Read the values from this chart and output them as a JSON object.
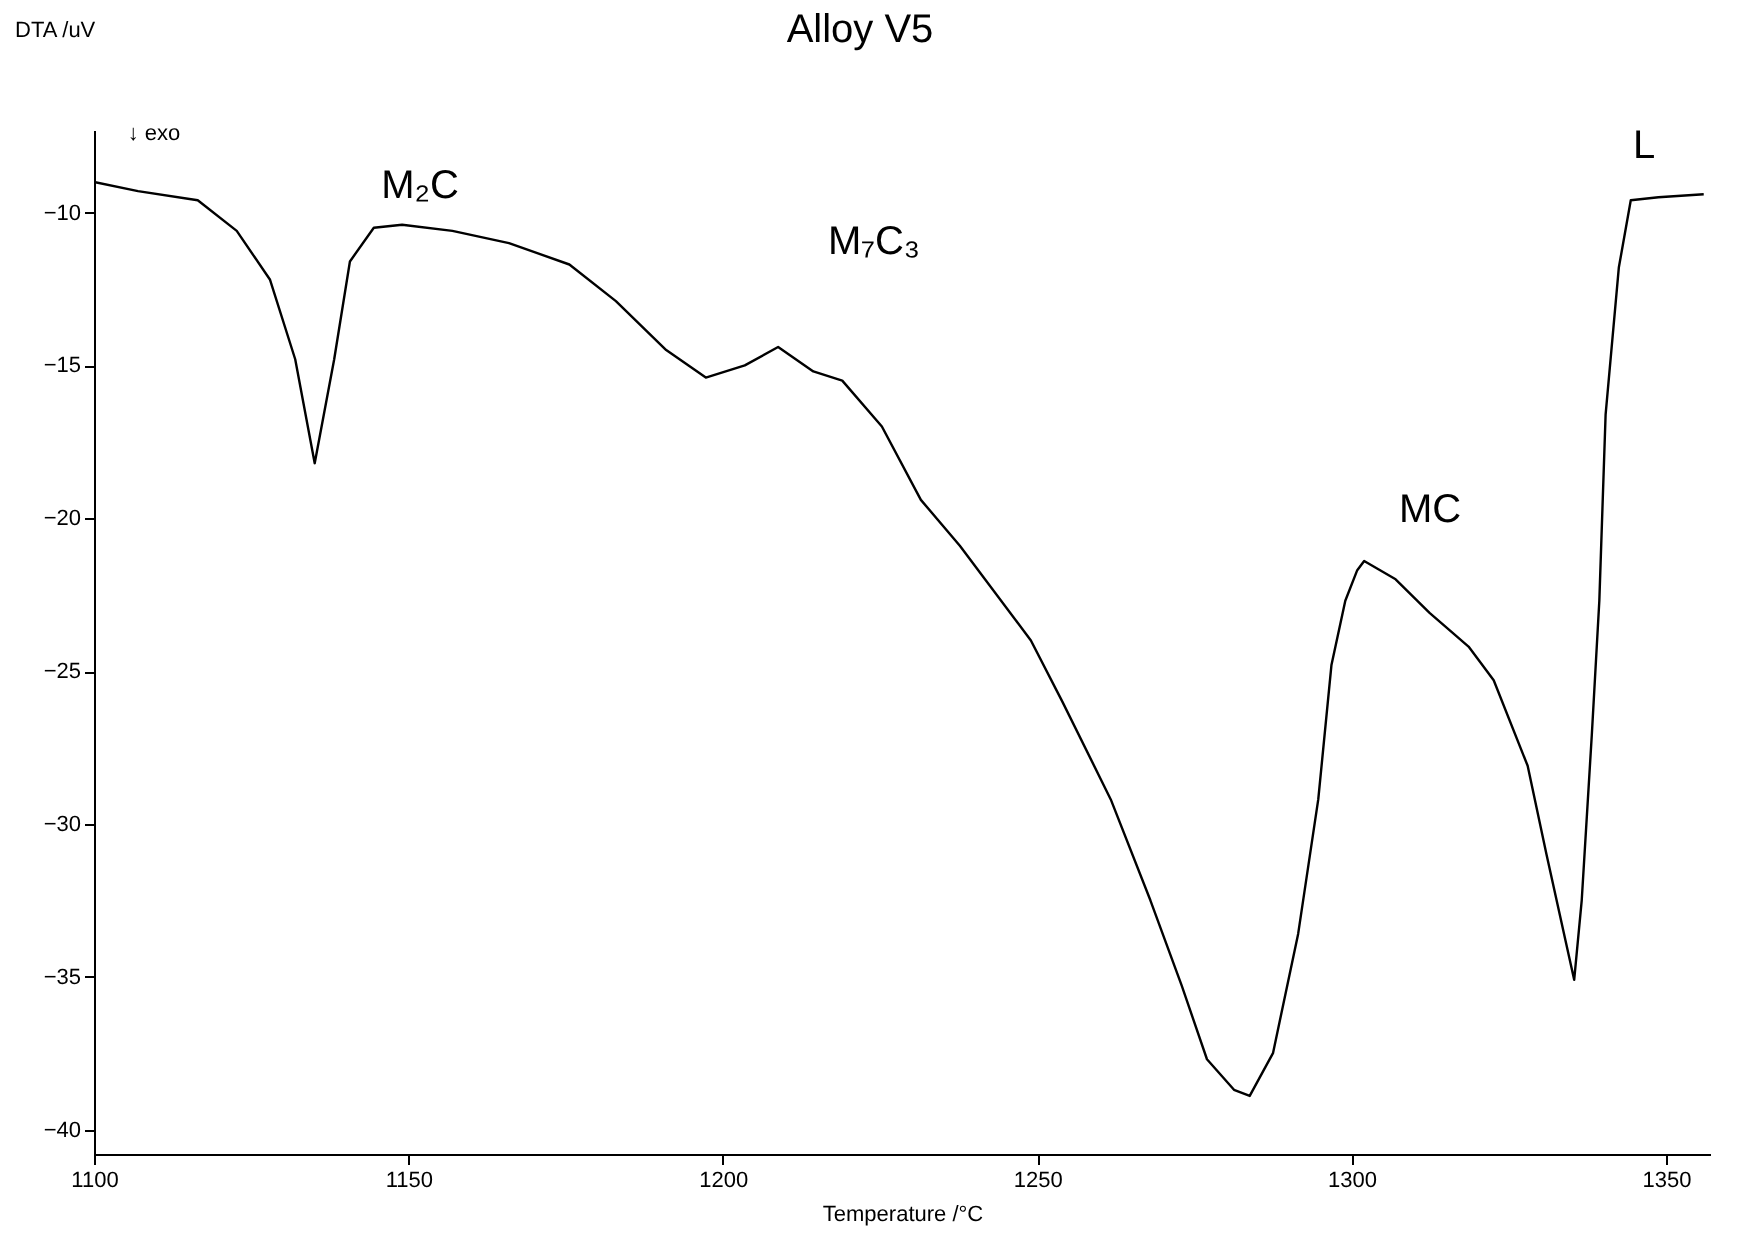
{
  "chart_data": {
    "type": "line",
    "title": "Alloy V5",
    "xlabel": "Temperature /°C",
    "ylabel": "DTA /uV",
    "x": [
      1100,
      1107,
      1116.5,
      1122.7,
      1128,
      1132,
      1135.1,
      1138.2,
      1140.7,
      1144.5,
      1149,
      1157,
      1166,
      1175.6,
      1183,
      1191,
      1197.3,
      1203.5,
      1208.8,
      1214.4,
      1219,
      1225.3,
      1231.5,
      1237.7,
      1249,
      1254,
      1261.7,
      1268,
      1273,
      1277,
      1281.3,
      1283.8,
      1287.5,
      1291.5,
      1294.7,
      1296.8,
      1299,
      1300.9,
      1302,
      1307,
      1312.4,
      1318.6,
      1322.6,
      1328,
      1331,
      1334,
      1335.4,
      1336.6,
      1338.2,
      1339.4,
      1340.4,
      1342.5,
      1344.4,
      1348.8,
      1356
    ],
    "series": [
      {
        "color": "#000000",
        "values": [
          -9.0,
          -9.3,
          -9.6,
          -10.6,
          -12.2,
          -14.8,
          -18.2,
          -14.8,
          -11.6,
          -10.5,
          -10.4,
          -10.6,
          -11.0,
          -11.7,
          -12.9,
          -14.5,
          -15.4,
          -15.0,
          -14.4,
          -15.2,
          -15.5,
          -17.0,
          -19.4,
          -20.9,
          -24.0,
          -26.0,
          -29.2,
          -32.5,
          -35.3,
          -37.7,
          -38.7,
          -38.9,
          -37.5,
          -33.6,
          -29.2,
          -24.8,
          -22.7,
          -21.7,
          -21.4,
          -22.0,
          -23.1,
          -24.2,
          -25.3,
          -28.1,
          -31.0,
          -33.8,
          -35.1,
          -32.5,
          -27.1,
          -22.7,
          -16.6,
          -11.8,
          -9.6,
          -9.5,
          -9.4
        ]
      }
    ],
    "xlim": [
      1100,
      1357
    ],
    "ylim": [
      -40.8,
      -7.3
    ],
    "xticks": [
      1100,
      1150,
      1200,
      1250,
      1300,
      1350
    ],
    "yticks": [
      -10,
      -15,
      -20,
      -25,
      -30,
      -35,
      -40
    ],
    "grid": false,
    "marker": "none",
    "line_style": "solid",
    "annotations": [
      "M₂C",
      "M₇C₃",
      "MC",
      "L",
      "↓ exo"
    ]
  }
}
